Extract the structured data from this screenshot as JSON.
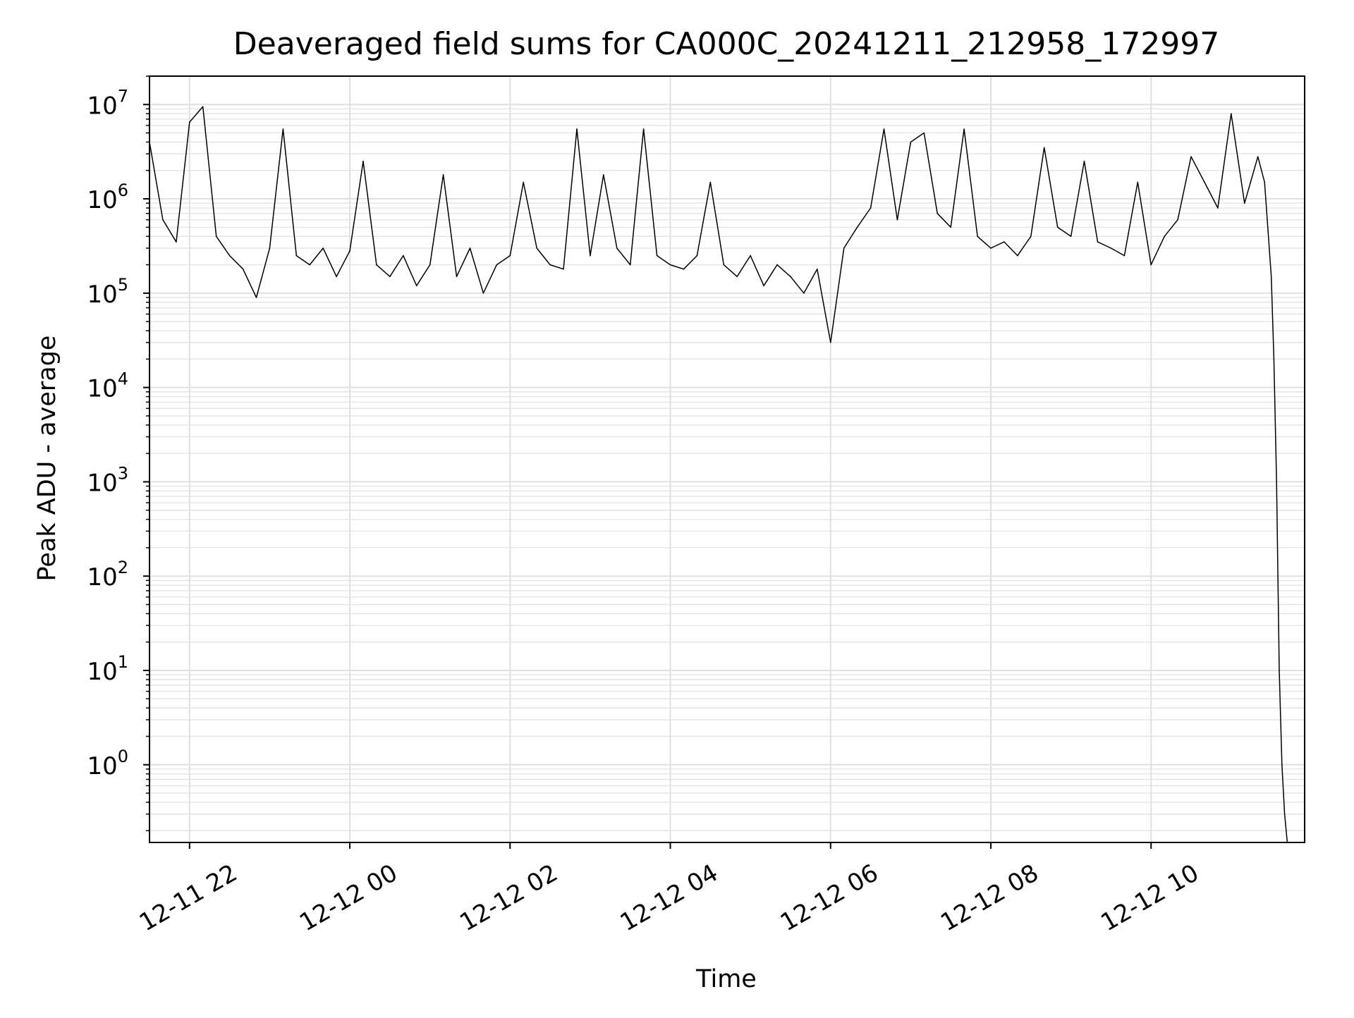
{
  "chart_data": {
    "type": "line",
    "title": "Deaveraged field sums for CA000C_20241211_212958_172997",
    "xlabel": "Time",
    "ylabel": "Peak ADU - average",
    "yscale": "log",
    "grid": true,
    "legend": "none",
    "x_tick_labels": [
      "12-11 22",
      "12-12 00",
      "12-12 02",
      "12-12 04",
      "12-12 06",
      "12-12 08",
      "12-12 10"
    ],
    "x_ticks": [
      "2024-12-11 22:00",
      "2024-12-12 00:00",
      "2024-12-12 02:00",
      "2024-12-12 04:00",
      "2024-12-12 06:00",
      "2024-12-12 08:00",
      "2024-12-12 10:00"
    ],
    "y_ticks": [
      1,
      10,
      100,
      1000,
      10000,
      100000,
      1000000,
      10000000
    ],
    "y_tick_exponents": [
      "0",
      "1",
      "2",
      "3",
      "4",
      "5",
      "6",
      "7"
    ],
    "y_tick_base": "10",
    "xlim": [
      "2024-12-11 21:30",
      "2024-12-12 11:55"
    ],
    "ylim": [
      0.15,
      20000000
    ],
    "series": [
      {
        "color": "#000000",
        "x": [
          "2024-12-11 21:30",
          "2024-12-11 21:40",
          "2024-12-11 21:50",
          "2024-12-11 22:00",
          "2024-12-11 22:10",
          "2024-12-11 22:20",
          "2024-12-11 22:30",
          "2024-12-11 22:40",
          "2024-12-11 22:50",
          "2024-12-11 23:00",
          "2024-12-11 23:10",
          "2024-12-11 23:20",
          "2024-12-11 23:30",
          "2024-12-11 23:40",
          "2024-12-11 23:50",
          "2024-12-12 00:00",
          "2024-12-12 00:10",
          "2024-12-12 00:20",
          "2024-12-12 00:30",
          "2024-12-12 00:40",
          "2024-12-12 00:50",
          "2024-12-12 01:00",
          "2024-12-12 01:10",
          "2024-12-12 01:20",
          "2024-12-12 01:30",
          "2024-12-12 01:40",
          "2024-12-12 01:50",
          "2024-12-12 02:00",
          "2024-12-12 02:10",
          "2024-12-12 02:20",
          "2024-12-12 02:30",
          "2024-12-12 02:40",
          "2024-12-12 02:50",
          "2024-12-12 03:00",
          "2024-12-12 03:10",
          "2024-12-12 03:20",
          "2024-12-12 03:30",
          "2024-12-12 03:40",
          "2024-12-12 03:50",
          "2024-12-12 04:00",
          "2024-12-12 04:10",
          "2024-12-12 04:20",
          "2024-12-12 04:30",
          "2024-12-12 04:40",
          "2024-12-12 04:50",
          "2024-12-12 05:00",
          "2024-12-12 05:10",
          "2024-12-12 05:20",
          "2024-12-12 05:30",
          "2024-12-12 05:40",
          "2024-12-12 05:50",
          "2024-12-12 06:00",
          "2024-12-12 06:10",
          "2024-12-12 06:20",
          "2024-12-12 06:30",
          "2024-12-12 06:40",
          "2024-12-12 06:50",
          "2024-12-12 07:00",
          "2024-12-12 07:10",
          "2024-12-12 07:20",
          "2024-12-12 07:30",
          "2024-12-12 07:40",
          "2024-12-12 07:50",
          "2024-12-12 08:00",
          "2024-12-12 08:10",
          "2024-12-12 08:20",
          "2024-12-12 08:30",
          "2024-12-12 08:40",
          "2024-12-12 08:50",
          "2024-12-12 09:00",
          "2024-12-12 09:10",
          "2024-12-12 09:20",
          "2024-12-12 09:30",
          "2024-12-12 09:40",
          "2024-12-12 09:50",
          "2024-12-12 10:00",
          "2024-12-12 10:10",
          "2024-12-12 10:20",
          "2024-12-12 10:30",
          "2024-12-12 10:40",
          "2024-12-12 10:50",
          "2024-12-12 11:00",
          "2024-12-12 11:10",
          "2024-12-12 11:20",
          "2024-12-12 11:25",
          "2024-12-12 11:30",
          "2024-12-12 11:32",
          "2024-12-12 11:34",
          "2024-12-12 11:36",
          "2024-12-12 11:38",
          "2024-12-12 11:40",
          "2024-12-12 11:42"
        ],
        "values": [
          4000000,
          600000,
          350000,
          6500000,
          9500000,
          400000,
          250000,
          180000,
          90000,
          300000,
          5500000,
          250000,
          200000,
          300000,
          150000,
          280000,
          2500000,
          200000,
          150000,
          250000,
          120000,
          200000,
          1800000,
          150000,
          300000,
          100000,
          200000,
          250000,
          1500000,
          300000,
          200000,
          180000,
          5500000,
          250000,
          1800000,
          300000,
          200000,
          5500000,
          250000,
          200000,
          180000,
          250000,
          1500000,
          200000,
          150000,
          250000,
          120000,
          200000,
          150000,
          100000,
          180000,
          30000,
          300000,
          500000,
          800000,
          5500000,
          600000,
          4000000,
          5000000,
          700000,
          500000,
          5500000,
          400000,
          300000,
          350000,
          250000,
          400000,
          3500000,
          500000,
          400000,
          2500000,
          350000,
          300000,
          250000,
          1500000,
          200000,
          400000,
          600000,
          2800000,
          1500000,
          800000,
          8000000,
          900000,
          2800000,
          1500000,
          150000,
          20000,
          1000,
          10,
          1,
          0.3,
          0.15
        ]
      }
    ]
  }
}
